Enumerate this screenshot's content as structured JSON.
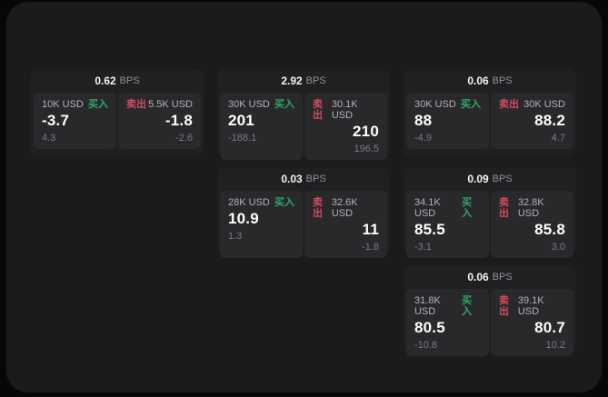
{
  "labels": {
    "buy": "买入",
    "sell": "卖出",
    "bps": "BPS"
  },
  "colors": {
    "buy_green": "#2fa768",
    "sell_red": "#d14b5f",
    "window_bg": "#1b1b1d",
    "card_bg": "#202022",
    "panel_bg": "#29292c"
  },
  "cards": [
    {
      "bps": "0.62",
      "row": 1,
      "col": 1,
      "buy": {
        "amount": "10K USD",
        "price": "-3.7",
        "delta": "4.3"
      },
      "sell": {
        "amount": "5.5K USD",
        "price": "-1.8",
        "delta": "-2.6"
      }
    },
    {
      "bps": "2.92",
      "row": 1,
      "col": 2,
      "buy": {
        "amount": "30K USD",
        "price": "201",
        "delta": "-188.1"
      },
      "sell": {
        "amount": "30.1K USD",
        "price": "210",
        "delta": "196.5"
      }
    },
    {
      "bps": "0.06",
      "row": 1,
      "col": 3,
      "buy": {
        "amount": "30K USD",
        "price": "88",
        "delta": "-4.9"
      },
      "sell": {
        "amount": "30K USD",
        "price": "88.2",
        "delta": "4.7"
      }
    },
    {
      "bps": "0.03",
      "row": 2,
      "col": 2,
      "buy": {
        "amount": "28K USD",
        "price": "10.9",
        "delta": "1.3"
      },
      "sell": {
        "amount": "32.6K USD",
        "price": "11",
        "delta": "-1.8"
      }
    },
    {
      "bps": "0.09",
      "row": 2,
      "col": 3,
      "buy": {
        "amount": "34.1K USD",
        "price": "85.5",
        "delta": "-3.1"
      },
      "sell": {
        "amount": "32.8K USD",
        "price": "85.8",
        "delta": "3.0"
      }
    },
    {
      "bps": "0.06",
      "row": 3,
      "col": 3,
      "buy": {
        "amount": "31.8K USD",
        "price": "80.5",
        "delta": "-10.8"
      },
      "sell": {
        "amount": "39.1K USD",
        "price": "80.7",
        "delta": "10.2"
      }
    }
  ]
}
